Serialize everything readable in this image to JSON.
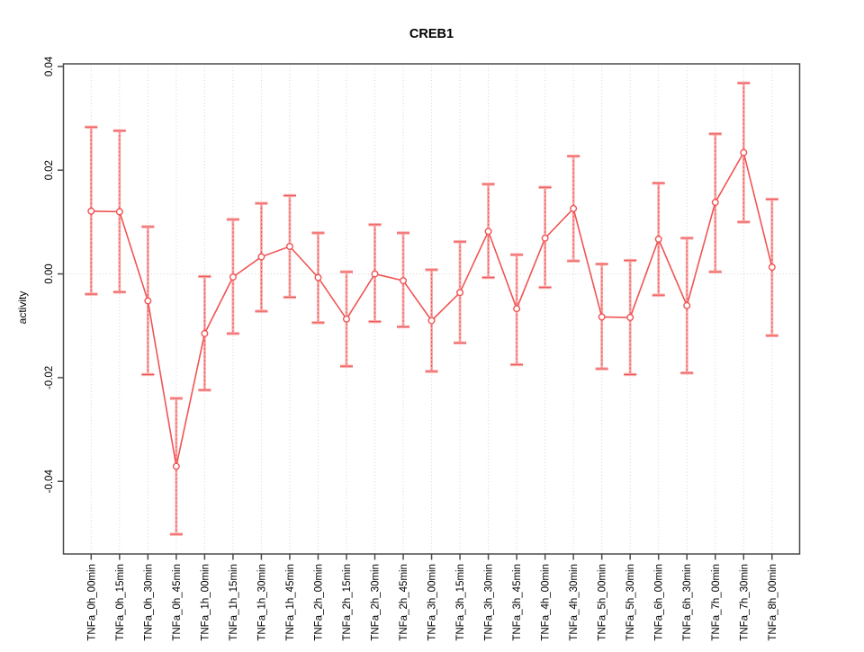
{
  "page": {
    "background": "#ffffff"
  },
  "chart_data": {
    "type": "line",
    "title": "CREB1",
    "xlabel": "",
    "ylabel": "activity",
    "grid": "vertical dotted gridline at every category; dotted horizontal line at y=0; full box frame",
    "legend": "none",
    "ylim": [
      -0.054,
      0.0405
    ],
    "yticks": [
      -0.04,
      -0.02,
      0,
      0.02,
      0.04
    ],
    "ytick_labels": [
      "-0.04",
      "-0.02",
      "0.00",
      "0.02",
      "0.04"
    ],
    "categories": [
      "TNFa_0h_00min",
      "TNFa_0h_15min",
      "TNFa_0h_30min",
      "TNFa_0h_45min",
      "TNFa_1h_00min",
      "TNFa_1h_15min",
      "TNFa_1h_30min",
      "TNFa_1h_45min",
      "TNFa_2h_00min",
      "TNFa_2h_15min",
      "TNFa_2h_30min",
      "TNFa_2h_45min",
      "TNFa_3h_00min",
      "TNFa_3h_15min",
      "TNFa_3h_30min",
      "TNFa_3h_45min",
      "TNFa_4h_00min",
      "TNFa_4h_30min",
      "TNFa_5h_00min",
      "TNFa_5h_30min",
      "TNFa_6h_00min",
      "TNFa_6h_30min",
      "TNFa_7h_00min",
      "TNFa_7h_30min",
      "TNFa_8h_00min"
    ],
    "series": [
      {
        "name": "CREB1 activity",
        "marker": "open-circle",
        "values": [
          0.0121,
          0.012,
          -0.0052,
          -0.0371,
          -0.0115,
          -0.0006,
          0.0033,
          0.0053,
          -0.0007,
          -0.0087,
          0.0,
          -0.0013,
          -0.009,
          -0.0036,
          0.0082,
          -0.0067,
          0.0069,
          0.0126,
          -0.0083,
          -0.0084,
          0.0067,
          -0.0061,
          0.0138,
          0.0234,
          0.0013
        ],
        "error_high": [
          0.0283,
          0.0276,
          0.0091,
          -0.024,
          -0.0005,
          0.0105,
          0.0136,
          0.0151,
          0.0079,
          0.0004,
          0.0095,
          0.0079,
          0.0008,
          0.0062,
          0.0173,
          0.0037,
          0.0167,
          0.0227,
          0.0019,
          0.0026,
          0.0175,
          0.0069,
          0.027,
          0.0368,
          0.0144
        ],
        "error_low": [
          -0.0039,
          -0.0035,
          -0.0194,
          -0.0502,
          -0.0224,
          -0.0115,
          -0.0072,
          -0.0045,
          -0.0094,
          -0.0178,
          -0.0092,
          -0.0102,
          -0.0188,
          -0.0133,
          -0.0007,
          -0.0175,
          -0.0026,
          0.0025,
          -0.0183,
          -0.0194,
          -0.0041,
          -0.0191,
          0.0004,
          0.01,
          -0.0119
        ]
      }
    ],
    "colors": {
      "series": "#f05454",
      "error_bar_light": "#f8abab",
      "grid": "#d4d4d4",
      "axis": "#4a4a4a",
      "text": "#000000",
      "marker_fill": "#ffffff"
    }
  }
}
